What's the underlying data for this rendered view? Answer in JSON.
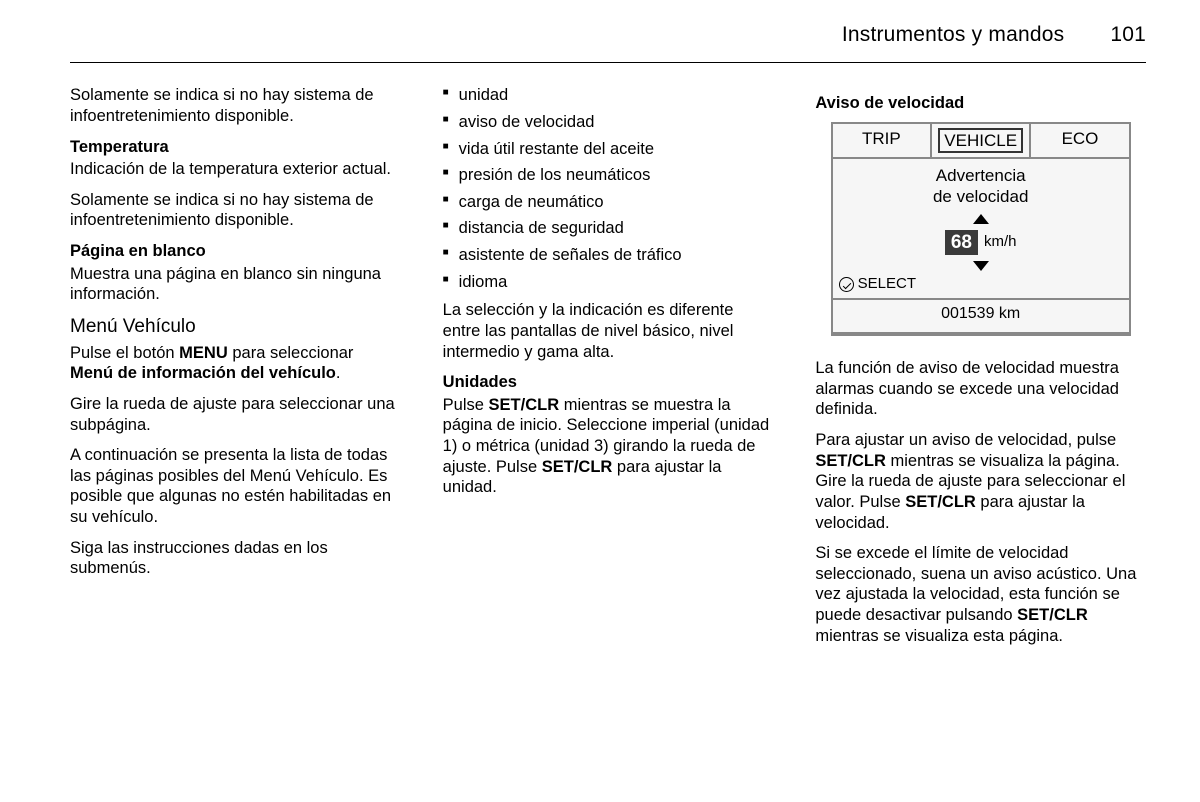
{
  "header": {
    "title": "Instrumentos y mandos",
    "page": "101"
  },
  "col1": {
    "p1": "Solamente se indica si no hay sistema de infoentretenimiento disponible.",
    "h_temp": "Temperatura",
    "p_temp": "Indicación de la temperatura exterior actual.",
    "p_temp2": "Solamente se indica si no hay sistema de infoentretenimiento disponible.",
    "h_blank": "Página en blanco",
    "p_blank": "Muestra una página en blanco sin ninguna información.",
    "h_menu": "Menú Vehículo",
    "p_menu_a": "Pulse el botón ",
    "p_menu_b": "MENU",
    "p_menu_c": " para seleccionar ",
    "p_menu_d": "Menú de información del vehículo",
    "p_menu_e": ".",
    "p_gire": "Gire la rueda de ajuste para seleccionar una subpágina.",
    "p_lista": "A continuación se presenta la lista de todas las páginas posibles del Menú Vehículo. Es posible que algunas no estén habilitadas en su vehículo.",
    "p_siga": "Siga las instrucciones dadas en los submenús."
  },
  "col2": {
    "items": [
      "unidad",
      "aviso de velocidad",
      "vida útil restante del aceite",
      "presión de los neumáticos",
      "carga de neumático",
      "distancia de seguridad",
      "asistente de señales de tráfico",
      "idioma"
    ],
    "p_sel": "La selección y la indicación es diferente entre las pantallas de nivel básico, nivel intermedio y gama alta.",
    "h_uni": "Unidades",
    "p_uni_a": "Pulse ",
    "p_uni_b": "SET/CLR",
    "p_uni_c": " mientras se muestra la página de inicio. Seleccione imperial (unidad 1) o métrica (unidad 3) girando la rueda de ajuste. Pulse ",
    "p_uni_d": "SET/CLR",
    "p_uni_e": " para ajustar la unidad."
  },
  "col3": {
    "h_av": "Aviso de velocidad",
    "display": {
      "tabs": [
        "TRIP",
        "VEHICLE",
        "ECO"
      ],
      "title1": "Advertencia",
      "title2": "de velocidad",
      "speed": "68",
      "unit": "km/h",
      "select": "SELECT",
      "odo": "001539 km"
    },
    "p1": "La función de aviso de velocidad muestra alarmas cuando se excede una velocidad definida.",
    "p2_a": "Para ajustar un aviso de velocidad, pulse ",
    "p2_b": "SET/CLR",
    "p2_c": " mientras se visualiza la página. Gire la rueda de ajuste para seleccionar el valor. Pulse ",
    "p2_d": "SET/CLR",
    "p2_e": " para ajustar la velocidad.",
    "p3_a": "Si se excede el límite de velocidad seleccionado, suena un aviso acústico. Una vez ajustada la velocidad, esta función se puede desactivar pulsando ",
    "p3_b": "SET/CLR",
    "p3_c": " mientras se visualiza esta página."
  }
}
